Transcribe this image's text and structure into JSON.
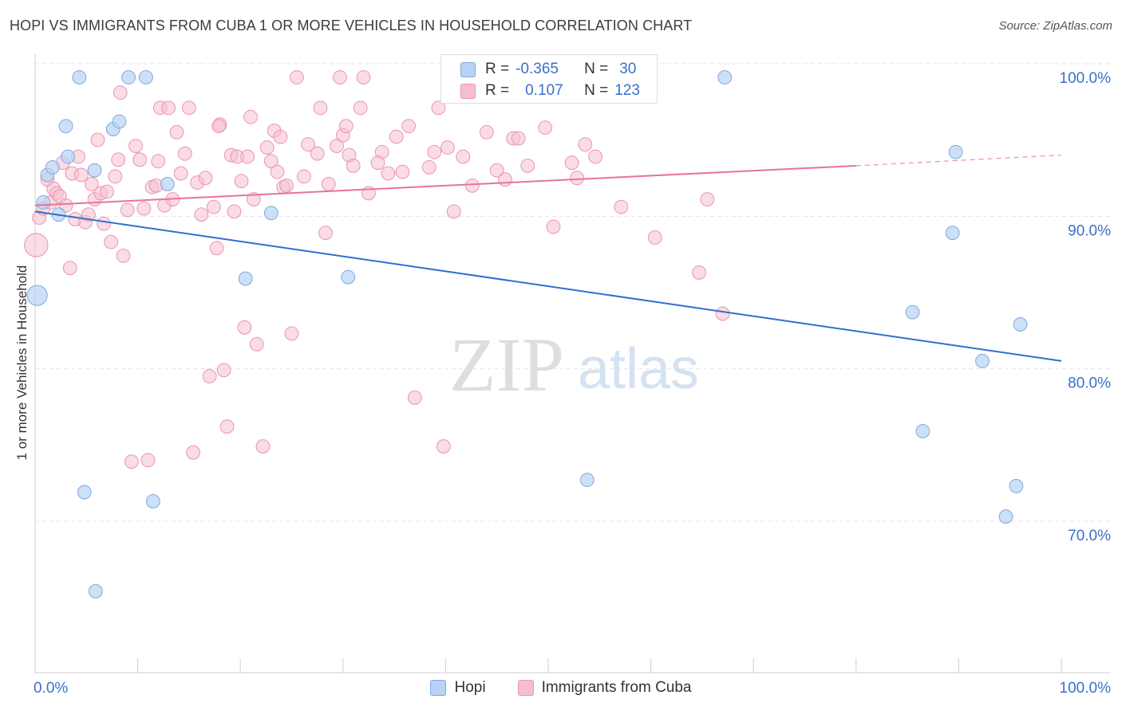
{
  "title": "HOPI VS IMMIGRANTS FROM CUBA 1 OR MORE VEHICLES IN HOUSEHOLD CORRELATION CHART",
  "source": "Source: ZipAtlas.com",
  "watermark": {
    "zip": "ZIP",
    "atlas": "atlas"
  },
  "stats": {
    "hopi": {
      "r_label": "R =",
      "r_value": "-0.365",
      "n_label": "N =",
      "n_value": "30"
    },
    "cuba": {
      "r_label": "R =",
      "r_value": "0.107",
      "n_label": "N =",
      "n_value": "123"
    }
  },
  "colors": {
    "hopi_fill": "#b8d3f4",
    "hopi_stroke": "#7ea8e0",
    "hopi_line": "#2f6fce",
    "cuba_fill": "#f6bfcf",
    "cuba_stroke": "#eb94b0",
    "cuba_line": "#e8739a",
    "tick_label": "#3a70c8",
    "grid": "#e4e4e4"
  },
  "chart_data": {
    "type": "scatter",
    "title": "HOPI VS IMMIGRANTS FROM CUBA 1 OR MORE VEHICLES IN HOUSEHOLD CORRELATION CHART",
    "xlabel": "",
    "ylabel": "1 or more Vehicles in Household",
    "xlim": [
      0,
      100
    ],
    "ylim": [
      59,
      102
    ],
    "x_tick_labels": [
      "0.0%",
      "100.0%"
    ],
    "y_ticks": [
      {
        "value": 100,
        "label": "100.0%"
      },
      {
        "value": 90,
        "label": "90.0%"
      },
      {
        "value": 80,
        "label": "80.0%"
      },
      {
        "value": 70,
        "label": "70.0%"
      }
    ],
    "grid": true,
    "legend_position": "bottom-center",
    "series": [
      {
        "name": "Hopi",
        "r": -0.365,
        "n": 30,
        "trend": {
          "x": [
            0,
            100
          ],
          "y": [
            91.2,
            81.4
          ]
        },
        "points": [
          [
            0.2,
            85.7,
            12
          ],
          [
            0.8,
            91.8,
            8
          ],
          [
            1.2,
            93.6,
            8
          ],
          [
            1.7,
            94.1,
            8
          ],
          [
            2.3,
            91.0,
            8
          ],
          [
            3.0,
            96.8,
            8
          ],
          [
            3.2,
            94.8,
            8
          ],
          [
            4.3,
            100.0,
            8
          ],
          [
            4.8,
            72.8,
            8
          ],
          [
            5.8,
            93.9,
            8
          ],
          [
            5.9,
            66.3,
            8
          ],
          [
            7.6,
            96.6,
            8
          ],
          [
            8.2,
            97.1,
            8
          ],
          [
            9.1,
            100.0,
            8
          ],
          [
            10.8,
            100.0,
            8
          ],
          [
            11.5,
            72.2,
            8
          ],
          [
            12.9,
            93.0,
            8
          ],
          [
            20.5,
            86.8,
            8
          ],
          [
            23.0,
            91.1,
            8
          ],
          [
            30.5,
            86.9,
            8
          ],
          [
            67.2,
            100.0,
            8
          ],
          [
            85.5,
            84.6,
            8
          ],
          [
            86.5,
            76.8,
            8
          ],
          [
            89.4,
            89.8,
            8
          ],
          [
            89.7,
            95.1,
            8
          ],
          [
            92.3,
            81.4,
            8
          ],
          [
            94.6,
            71.2,
            8
          ],
          [
            95.6,
            73.2,
            8
          ],
          [
            96.0,
            83.8,
            8
          ],
          [
            53.8,
            73.6,
            8
          ]
        ]
      },
      {
        "name": "Immigrants from Cuba",
        "r": 0.107,
        "n": 123,
        "trend": {
          "x": [
            0,
            80
          ],
          "y": [
            91.6,
            94.2
          ],
          "dashed_to": [
            100,
            94.9
          ]
        },
        "points": [
          [
            0.1,
            89.0,
            14
          ],
          [
            0.4,
            90.8,
            8
          ],
          [
            0.8,
            91.4,
            8
          ],
          [
            1.2,
            93.3,
            8
          ],
          [
            1.5,
            91.8,
            8
          ],
          [
            1.8,
            92.7,
            8
          ],
          [
            2.1,
            92.4,
            8
          ],
          [
            2.4,
            92.2,
            8
          ],
          [
            2.7,
            94.4,
            8
          ],
          [
            3.0,
            91.6,
            8
          ],
          [
            3.4,
            87.5,
            8
          ],
          [
            3.6,
            93.7,
            8
          ],
          [
            3.9,
            90.7,
            8
          ],
          [
            4.2,
            94.8,
            8
          ],
          [
            4.5,
            93.6,
            8
          ],
          [
            4.9,
            90.5,
            8
          ],
          [
            5.2,
            91.0,
            8
          ],
          [
            5.5,
            93.0,
            8
          ],
          [
            5.8,
            92.0,
            8
          ],
          [
            6.1,
            95.9,
            8
          ],
          [
            6.4,
            92.4,
            8
          ],
          [
            6.7,
            90.4,
            8
          ],
          [
            7.0,
            92.5,
            8
          ],
          [
            7.4,
            89.2,
            8
          ],
          [
            7.8,
            93.5,
            8
          ],
          [
            8.1,
            94.6,
            8
          ],
          [
            8.3,
            99.0,
            8
          ],
          [
            8.6,
            88.3,
            8
          ],
          [
            9.0,
            91.3,
            8
          ],
          [
            9.4,
            74.8,
            8
          ],
          [
            9.8,
            95.5,
            8
          ],
          [
            10.2,
            94.6,
            8
          ],
          [
            10.6,
            91.4,
            8
          ],
          [
            11.0,
            74.9,
            8
          ],
          [
            11.4,
            92.8,
            8
          ],
          [
            11.8,
            92.9,
            8
          ],
          [
            12.2,
            98.0,
            8
          ],
          [
            12.6,
            91.6,
            8
          ],
          [
            13.0,
            98.0,
            8
          ],
          [
            13.4,
            92.0,
            8
          ],
          [
            13.8,
            96.4,
            8
          ],
          [
            14.2,
            93.7,
            8
          ],
          [
            14.6,
            95.0,
            8
          ],
          [
            15.0,
            98.0,
            8
          ],
          [
            15.4,
            75.4,
            8
          ],
          [
            15.8,
            93.1,
            8
          ],
          [
            16.2,
            91.0,
            8
          ],
          [
            16.6,
            93.4,
            8
          ],
          [
            17.0,
            80.4,
            8
          ],
          [
            17.4,
            91.5,
            8
          ],
          [
            17.7,
            88.8,
            8
          ],
          [
            18.0,
            96.9,
            8
          ],
          [
            18.4,
            80.8,
            8
          ],
          [
            18.7,
            77.1,
            8
          ],
          [
            19.1,
            94.9,
            8
          ],
          [
            19.4,
            91.2,
            8
          ],
          [
            19.7,
            94.8,
            8
          ],
          [
            20.1,
            93.2,
            8
          ],
          [
            20.4,
            83.6,
            8
          ],
          [
            20.7,
            94.8,
            8
          ],
          [
            21.0,
            97.4,
            8
          ],
          [
            21.3,
            92.0,
            8
          ],
          [
            21.6,
            82.5,
            8
          ],
          [
            22.2,
            75.8,
            8
          ],
          [
            22.6,
            95.4,
            8
          ],
          [
            23.0,
            94.5,
            8
          ],
          [
            23.3,
            96.5,
            8
          ],
          [
            23.6,
            93.8,
            8
          ],
          [
            23.9,
            96.1,
            8
          ],
          [
            24.2,
            92.8,
            8
          ],
          [
            24.5,
            92.9,
            8
          ],
          [
            25.0,
            83.2,
            8
          ],
          [
            25.5,
            100.0,
            8
          ],
          [
            26.2,
            93.5,
            8
          ],
          [
            27.5,
            95.0,
            8
          ],
          [
            27.8,
            98.0,
            8
          ],
          [
            28.3,
            89.8,
            8
          ],
          [
            28.6,
            93.0,
            8
          ],
          [
            29.4,
            95.5,
            8
          ],
          [
            29.7,
            100.0,
            8
          ],
          [
            30.0,
            96.2,
            8
          ],
          [
            30.3,
            96.8,
            8
          ],
          [
            30.6,
            94.9,
            8
          ],
          [
            31.0,
            94.2,
            8
          ],
          [
            31.7,
            98.0,
            8
          ],
          [
            32.0,
            100.0,
            8
          ],
          [
            32.5,
            92.4,
            8
          ],
          [
            33.8,
            95.1,
            8
          ],
          [
            34.4,
            93.7,
            8
          ],
          [
            35.2,
            96.1,
            8
          ],
          [
            35.8,
            93.8,
            8
          ],
          [
            36.4,
            96.8,
            8
          ],
          [
            37.0,
            79.0,
            8
          ],
          [
            38.4,
            94.1,
            8
          ],
          [
            38.9,
            95.1,
            8
          ],
          [
            39.3,
            98.0,
            8
          ],
          [
            39.8,
            75.8,
            8
          ],
          [
            40.2,
            95.4,
            8
          ],
          [
            40.8,
            91.2,
            8
          ],
          [
            41.7,
            94.8,
            8
          ],
          [
            42.6,
            92.9,
            8
          ],
          [
            44.0,
            96.4,
            8
          ],
          [
            45.0,
            93.9,
            8
          ],
          [
            45.8,
            93.3,
            8
          ],
          [
            46.6,
            96.0,
            8
          ],
          [
            47.1,
            96.0,
            8
          ],
          [
            48.0,
            94.2,
            8
          ],
          [
            49.7,
            96.7,
            8
          ],
          [
            50.5,
            90.2,
            8
          ],
          [
            52.3,
            94.4,
            8
          ],
          [
            52.8,
            93.4,
            8
          ],
          [
            53.6,
            95.6,
            8
          ],
          [
            54.6,
            94.8,
            8
          ],
          [
            56.1,
            100.0,
            8
          ],
          [
            57.1,
            91.5,
            8
          ],
          [
            60.4,
            89.5,
            8
          ],
          [
            64.7,
            87.2,
            8
          ],
          [
            65.5,
            92.0,
            8
          ],
          [
            67.0,
            84.5,
            8
          ],
          [
            17.9,
            96.8,
            8
          ],
          [
            26.6,
            95.6,
            8
          ],
          [
            33.4,
            94.4,
            8
          ],
          [
            12.0,
            94.5,
            8
          ]
        ]
      }
    ]
  }
}
